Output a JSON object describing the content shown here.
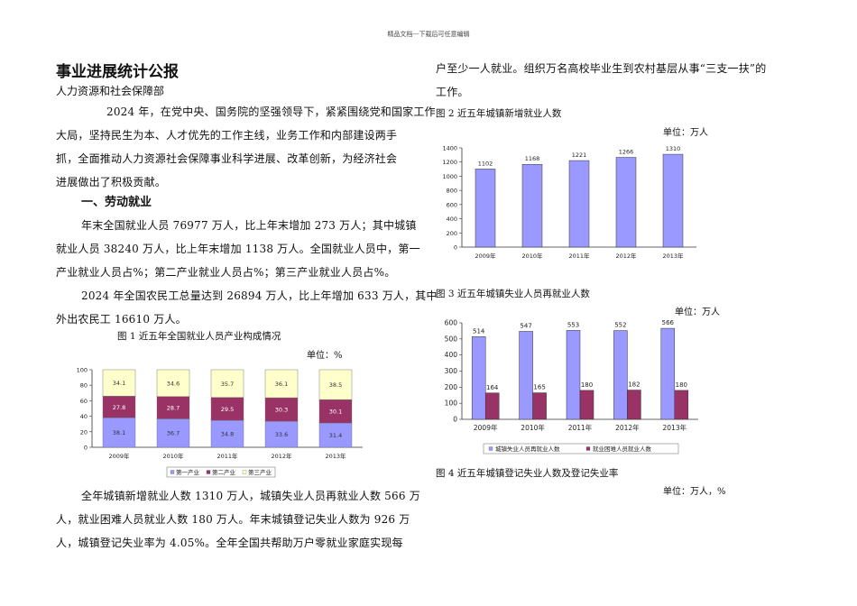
{
  "header_text": "精品文档---下载后可任意编辑",
  "title": "事业进展统计公报",
  "subtitle": "人力资源和社会保障部",
  "intro_lines": [
    "2024 年，在党中央、国务院的坚强领导下，紧紧围绕党和国家工作",
    "大局，坚持民生为本、人才优先的工作主线，业务工作和内部建设两手",
    "抓，全面推动人力资源社会保障事业科学进展、改革创新，为经济社会",
    "进展做出了积极贡献。"
  ],
  "section1": "一、劳动就业",
  "p1_lines": [
    "年末全国就业人员 76977 万人，比上年末增加 273 万人；其中城镇",
    "就业人员 38240 万人，比上年末增加 1138 万人。全国就业人员中，第一",
    "产业就业人员占%；第二产业就业人员占%；第三产业就业人员占%。"
  ],
  "p2_lines": [
    "2024 年全国农民工总量达到 26894 万人，比上年增加 633 万人，其中",
    "外出农民工 16610 万人。"
  ],
  "p3_lines": [
    "全年城镇新增就业人数 1310 万人，城镇失业人员再就业人数 566 万",
    "人，就业困难人员就业人数 180 万人。年末城镇登记失业人数为 926 万",
    "人，城镇登记失业率为 4.05%。全年全国共帮助万户零就业家庭实现每"
  ],
  "p4_lines": [
    "户至少一人就业。组织万名高校毕业生到农村基层从事“三支一扶”的",
    "工作。"
  ],
  "fig1": {
    "caption": "图 1  近五年全国就业人员产业构成情况",
    "unit": "单位：%"
  },
  "fig2": {
    "caption": "图 2  近五年城镇新增就业人数",
    "unit": "单位：万人"
  },
  "fig3": {
    "caption": "图 3  近五年城镇失业人员再就业人数",
    "unit": "单位：万人"
  },
  "fig4": {
    "caption": "图 4  近五年城镇登记失业人数及登记失业率",
    "unit": "单位：万人，%"
  },
  "chart_data": [
    {
      "type": "bar",
      "stacked": true,
      "categories": [
        "2009年",
        "2010年",
        "2011年",
        "2012年",
        "2013年"
      ],
      "series": [
        {
          "name": "第一产业",
          "values": [
            38.1,
            36.7,
            34.8,
            33.6,
            31.4
          ],
          "color": "#9999ff"
        },
        {
          "name": "第二产业",
          "values": [
            27.8,
            28.7,
            29.5,
            30.3,
            30.1
          ],
          "color": "#993366"
        },
        {
          "name": "第三产业",
          "values": [
            34.1,
            34.6,
            35.7,
            36.1,
            38.5
          ],
          "color": "#ffffcc"
        }
      ],
      "ylim": [
        0,
        100
      ],
      "yticks": [
        0,
        20,
        40,
        60,
        80,
        100
      ],
      "legend": "bottom"
    },
    {
      "type": "bar",
      "categories": [
        "2009年",
        "2010年",
        "2011年",
        "2012年",
        "2013年"
      ],
      "values": [
        1102,
        1168,
        1221,
        1266,
        1310
      ],
      "color": "#9999ff",
      "ylim": [
        0,
        1400
      ],
      "yticks": [
        0,
        200,
        400,
        600,
        800,
        1000,
        1200,
        1400
      ]
    },
    {
      "type": "bar",
      "categories": [
        "2009年",
        "2010年",
        "2011年",
        "2012年",
        "2013年"
      ],
      "series": [
        {
          "name": "城镇失业人员再就业人数",
          "values": [
            514,
            547,
            553,
            552,
            566
          ],
          "color": "#9999ff"
        },
        {
          "name": "就业困难人员就业人数",
          "values": [
            164,
            165,
            180,
            182,
            180
          ],
          "color": "#993366"
        }
      ],
      "ylim": [
        0,
        600
      ],
      "yticks": [
        0,
        100,
        200,
        300,
        400,
        500,
        600
      ],
      "legend": "bottom"
    }
  ]
}
